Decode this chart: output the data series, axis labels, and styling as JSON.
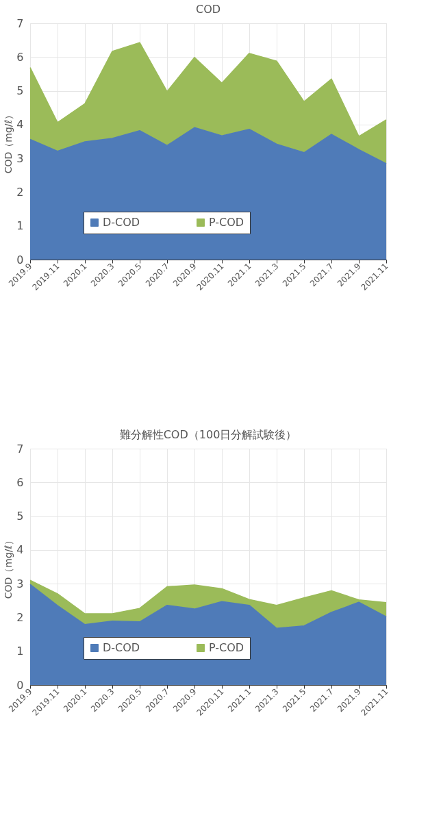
{
  "chart_data": [
    {
      "type": "area",
      "title": "COD",
      "ylabel": "COD（mg/ℓ）",
      "stacked": true,
      "grid": true,
      "legend": "bottom",
      "categories": [
        "2019.9",
        "2019.11",
        "2020.1",
        "2020.3",
        "2020.5",
        "2020.7",
        "2020.9",
        "2020.11",
        "2021.1",
        "2021.3",
        "2021.5",
        "2021.7",
        "2021.9",
        "2021.11"
      ],
      "ylim": [
        0,
        7
      ],
      "yticks": [
        0,
        1,
        2,
        3,
        4,
        5,
        6,
        7
      ],
      "series": [
        {
          "name": "D-COD",
          "color": "#4f7bb8",
          "values": [
            3.56,
            3.21,
            3.49,
            3.59,
            3.82,
            3.38,
            3.91,
            3.67,
            3.86,
            3.42,
            3.17,
            3.71,
            3.26,
            2.84
          ]
        },
        {
          "name": "P-COD",
          "color": "#9bbb59",
          "values": [
            2.13,
            0.85,
            1.13,
            2.58,
            2.61,
            1.6,
            2.08,
            1.56,
            2.25,
            2.46,
            1.51,
            1.64,
            0.39,
            1.3
          ]
        }
      ]
    },
    {
      "type": "area",
      "title": "難分解性COD（100日分解試験後）",
      "ylabel": "COD（mg/ℓ）",
      "stacked": true,
      "grid": true,
      "legend": "bottom",
      "categories": [
        "2019.9",
        "2019.11",
        "2020.1",
        "2020.3",
        "2020.5",
        "2020.7",
        "2020.9",
        "2020.11",
        "2021.1",
        "2021.3",
        "2021.5",
        "2021.7",
        "2021.9",
        "2021.11"
      ],
      "ylim": [
        0,
        7
      ],
      "yticks": [
        0,
        1,
        2,
        3,
        4,
        5,
        6,
        7
      ],
      "series": [
        {
          "name": "D-COD",
          "color": "#4f7bb8",
          "values": [
            2.98,
            2.35,
            1.79,
            1.89,
            1.87,
            2.36,
            2.25,
            2.47,
            2.36,
            1.68,
            1.75,
            2.15,
            2.45,
            2.02
          ]
        },
        {
          "name": "P-COD",
          "color": "#9bbb59",
          "values": [
            0.12,
            0.35,
            0.32,
            0.22,
            0.4,
            0.55,
            0.71,
            0.38,
            0.17,
            0.68,
            0.83,
            0.64,
            0.07,
            0.42
          ]
        }
      ]
    }
  ]
}
